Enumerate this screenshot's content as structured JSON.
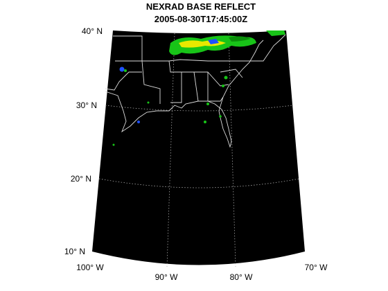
{
  "title": [
    "NEXRAD BASE REFLECT",
    "2005-08-30T17:45:00Z"
  ],
  "latitude_labels": [
    "40° N",
    "30° N",
    "20° N",
    "10° N"
  ],
  "longitude_labels": [
    "100° W",
    "90° W",
    "80° W",
    "70° W"
  ]
}
